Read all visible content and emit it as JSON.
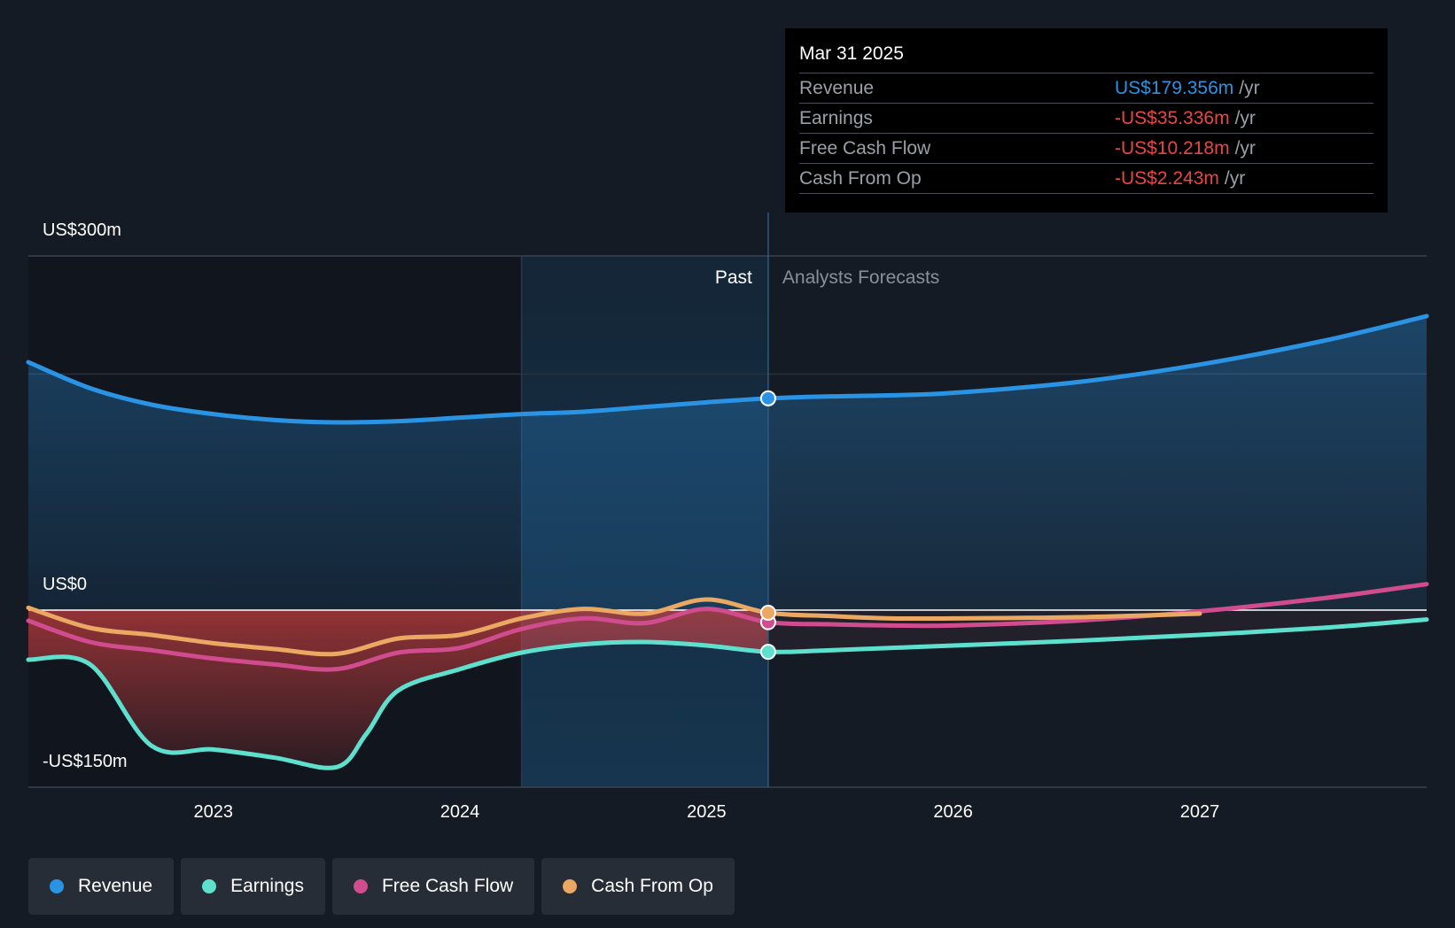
{
  "colors": {
    "revenue": "#2b93e3",
    "earnings": "#5ee0cf",
    "free_cash_flow": "#d04c8e",
    "cash_from_op": "#eaa862",
    "negative": "#e84646"
  },
  "tooltip": {
    "date": "Mar 31 2025",
    "rows": [
      {
        "label": "Revenue",
        "value": "US$179.356m",
        "unit": "/yr",
        "color": "#2b93e3"
      },
      {
        "label": "Earnings",
        "value": "-US$35.336m",
        "unit": "/yr",
        "color": "#e84646"
      },
      {
        "label": "Free Cash Flow",
        "value": "-US$10.218m",
        "unit": "/yr",
        "color": "#e84646"
      },
      {
        "label": "Cash From Op",
        "value": "-US$2.243m",
        "unit": "/yr",
        "color": "#e84646"
      }
    ]
  },
  "legend": [
    {
      "label": "Revenue",
      "color": "#2b93e3"
    },
    {
      "label": "Earnings",
      "color": "#5ee0cf"
    },
    {
      "label": "Free Cash Flow",
      "color": "#d04c8e"
    },
    {
      "label": "Cash From Op",
      "color": "#eaa862"
    }
  ],
  "chart_data": {
    "type": "line",
    "y_tick_labels": [
      "US$300m",
      "US$0",
      "-US$150m"
    ],
    "y_ticks": [
      300,
      0,
      -150
    ],
    "ylim": [
      -150,
      300
    ],
    "xlim": [
      2022.25,
      2027.92
    ],
    "x_tick_labels": [
      "2023",
      "2024",
      "2025",
      "2026",
      "2027"
    ],
    "x_ticks": [
      2023,
      2024,
      2025,
      2026,
      2027
    ],
    "past_label": "Past",
    "forecast_label": "Analysts Forecasts",
    "divider_x": 2025.25,
    "highlight_start_x": 2024.25,
    "grid": true,
    "series": [
      {
        "name": "Revenue",
        "key": "revenue",
        "color": "#2b93e3",
        "x": [
          2022.25,
          2022.5,
          2022.75,
          2023.0,
          2023.25,
          2023.5,
          2023.75,
          2024.0,
          2024.25,
          2024.5,
          2024.75,
          2025.0,
          2025.25,
          2025.5,
          2025.75,
          2026.0,
          2026.5,
          2027.0,
          2027.5,
          2027.92
        ],
        "y": [
          210,
          188,
          174,
          166,
          161,
          159,
          160,
          163,
          166,
          168,
          172,
          176,
          179.356,
          181,
          182,
          184,
          193,
          208,
          228,
          249
        ]
      },
      {
        "name": "Earnings",
        "key": "earnings",
        "color": "#5ee0cf",
        "x": [
          2022.25,
          2022.5,
          2022.75,
          2023.0,
          2023.25,
          2023.5,
          2023.62,
          2023.75,
          2024.0,
          2024.25,
          2024.5,
          2024.75,
          2025.0,
          2025.25,
          2025.5,
          2026.0,
          2026.5,
          2027.0,
          2027.5,
          2027.92
        ],
        "y": [
          -42,
          -46,
          -115,
          -118,
          -125,
          -133,
          -105,
          -68,
          -50,
          -36,
          -29,
          -27,
          -30,
          -35.336,
          -34,
          -30,
          -26,
          -21,
          -15,
          -8
        ]
      },
      {
        "name": "Free Cash Flow",
        "key": "free_cash_flow",
        "color": "#d04c8e",
        "x": [
          2022.25,
          2022.5,
          2022.75,
          2023.0,
          2023.25,
          2023.5,
          2023.75,
          2024.0,
          2024.25,
          2024.5,
          2024.75,
          2025.0,
          2025.25,
          2025.5,
          2025.75,
          2026.0,
          2026.5,
          2027.0,
          2027.5,
          2027.92
        ],
        "y": [
          -9,
          -27,
          -34,
          -41,
          -46,
          -50,
          -36,
          -32,
          -16,
          -7,
          -11,
          1,
          -10.218,
          -12,
          -13,
          -13,
          -9,
          -1,
          10,
          22
        ]
      },
      {
        "name": "Cash From Op",
        "key": "cash_from_op",
        "color": "#eaa862",
        "x": [
          2022.25,
          2022.5,
          2022.75,
          2023.0,
          2023.25,
          2023.5,
          2023.75,
          2024.0,
          2024.25,
          2024.5,
          2024.75,
          2025.0,
          2025.25,
          2025.5,
          2025.75,
          2026.0,
          2026.5,
          2027.0
        ],
        "y": [
          2,
          -15,
          -21,
          -28,
          -33,
          -37,
          -24,
          -21,
          -7,
          1,
          -3,
          9,
          -2.243,
          -5,
          -7,
          -7,
          -6,
          -3
        ]
      }
    ],
    "markers_at_x": 2025.25
  }
}
